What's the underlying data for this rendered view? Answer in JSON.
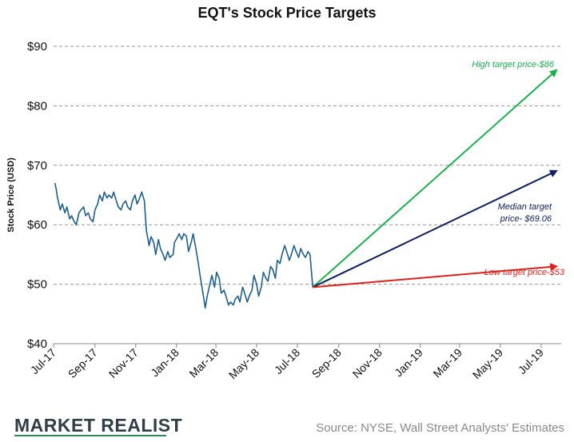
{
  "chart_data": {
    "type": "line",
    "title": "EQT's Stock Price Targets",
    "ylabel": "Stock Price (USD)",
    "xlabel": "",
    "ylim": [
      40,
      90
    ],
    "y_ticks": [
      40,
      50,
      60,
      70,
      80,
      90
    ],
    "y_tick_labels": [
      "$40",
      "$50",
      "$60",
      "$70",
      "$80",
      "$90"
    ],
    "x_range": [
      "2017-07-01",
      "2019-07-31"
    ],
    "x_ticks": [
      "2017-07-01",
      "2017-09-01",
      "2017-11-01",
      "2018-01-01",
      "2018-03-01",
      "2018-05-01",
      "2018-07-01",
      "2018-09-01",
      "2018-11-01",
      "2019-01-01",
      "2019-03-01",
      "2019-05-01",
      "2019-07-01"
    ],
    "x_tick_labels": [
      "Jul-17",
      "Sep-17",
      "Nov-17",
      "Jan-18",
      "Mar-18",
      "May-18",
      "Jul-18",
      "Sep-18",
      "Nov-18",
      "Jan-19",
      "Mar-19",
      "May-19",
      "Jul-19"
    ],
    "grid": "horizontal dashed",
    "series": [
      {
        "color": "#1f5f8b",
        "x": [
          "2017-07-03",
          "2017-07-05",
          "2017-07-07",
          "2017-07-11",
          "2017-07-14",
          "2017-07-18",
          "2017-07-21",
          "2017-07-25",
          "2017-07-28",
          "2017-08-01",
          "2017-08-04",
          "2017-08-08",
          "2017-08-11",
          "2017-08-15",
          "2017-08-18",
          "2017-08-22",
          "2017-08-25",
          "2017-08-29",
          "2017-09-01",
          "2017-09-05",
          "2017-09-08",
          "2017-09-12",
          "2017-09-15",
          "2017-09-19",
          "2017-09-22",
          "2017-09-26",
          "2017-09-29",
          "2017-10-03",
          "2017-10-06",
          "2017-10-10",
          "2017-10-13",
          "2017-10-17",
          "2017-10-20",
          "2017-10-24",
          "2017-10-27",
          "2017-10-31",
          "2017-11-03",
          "2017-11-07",
          "2017-11-10",
          "2017-11-14",
          "2017-11-17",
          "2017-11-21",
          "2017-11-24",
          "2017-11-28",
          "2017-12-01",
          "2017-12-05",
          "2017-12-08",
          "2017-12-12",
          "2017-12-15",
          "2017-12-19",
          "2017-12-22",
          "2017-12-27",
          "2017-12-29",
          "2018-01-03",
          "2018-01-05",
          "2018-01-09",
          "2018-01-12",
          "2018-01-16",
          "2018-01-19",
          "2018-01-23",
          "2018-01-26",
          "2018-01-30",
          "2018-02-02",
          "2018-02-06",
          "2018-02-09",
          "2018-02-13",
          "2018-02-16",
          "2018-02-20",
          "2018-02-23",
          "2018-02-27",
          "2018-03-02",
          "2018-03-06",
          "2018-03-09",
          "2018-03-13",
          "2018-03-16",
          "2018-03-20",
          "2018-03-23",
          "2018-03-27",
          "2018-03-30",
          "2018-04-03",
          "2018-04-06",
          "2018-04-10",
          "2018-04-13",
          "2018-04-17",
          "2018-04-20",
          "2018-04-24",
          "2018-04-27",
          "2018-05-01",
          "2018-05-04",
          "2018-05-08",
          "2018-05-11",
          "2018-05-15",
          "2018-05-18",
          "2018-05-22",
          "2018-05-25",
          "2018-05-29",
          "2018-06-01",
          "2018-06-05",
          "2018-06-08",
          "2018-06-12",
          "2018-06-15",
          "2018-06-19",
          "2018-06-22",
          "2018-06-26",
          "2018-06-29",
          "2018-07-03",
          "2018-07-06",
          "2018-07-10",
          "2018-07-13",
          "2018-07-17",
          "2018-07-20",
          "2018-07-24"
        ],
        "values": [
          67.0,
          66.0,
          64.5,
          62.5,
          63.5,
          62.0,
          63.0,
          61.0,
          61.5,
          60.5,
          60.0,
          62.0,
          62.5,
          63.0,
          61.5,
          62.0,
          61.0,
          60.5,
          62.5,
          63.5,
          65.0,
          64.0,
          65.5,
          64.5,
          65.0,
          64.5,
          65.5,
          64.0,
          63.0,
          62.5,
          63.5,
          64.0,
          63.0,
          62.5,
          64.0,
          65.0,
          63.5,
          64.5,
          65.5,
          64.0,
          59.0,
          56.5,
          58.0,
          57.0,
          55.0,
          57.5,
          56.0,
          55.0,
          54.0,
          55.5,
          54.5,
          55.0,
          57.0,
          58.0,
          58.5,
          57.5,
          58.5,
          58.0,
          55.5,
          57.0,
          58.5,
          56.0,
          54.0,
          51.0,
          49.0,
          46.0,
          48.0,
          50.0,
          51.5,
          49.5,
          52.0,
          51.0,
          48.5,
          49.0,
          48.0,
          46.5,
          47.0,
          46.5,
          47.5,
          48.0,
          47.0,
          49.5,
          48.5,
          47.0,
          48.0,
          49.0,
          51.5,
          50.0,
          48.0,
          49.5,
          52.0,
          51.0,
          50.5,
          53.0,
          52.5,
          51.0,
          54.0,
          53.5,
          55.0,
          56.5,
          55.5,
          54.0,
          55.0,
          56.5,
          55.5,
          54.5,
          56.0,
          55.0,
          54.5,
          55.5,
          55.0,
          49.5
        ]
      }
    ],
    "targets": [
      {
        "label": "High target price-$86",
        "color": "#18b24b",
        "from": {
          "x": "2018-07-24",
          "y": 49.5
        },
        "to": {
          "x": "2019-07-24",
          "y": 86
        }
      },
      {
        "label": "Median target price- $69.06",
        "label_lines": [
          "Median target",
          "price- $69.06"
        ],
        "color": "#0f2060",
        "from": {
          "x": "2018-07-24",
          "y": 49.5
        },
        "to": {
          "x": "2019-07-24",
          "y": 69.06
        }
      },
      {
        "label": "Low target price-$53",
        "color": "#e0201b",
        "from": {
          "x": "2018-07-24",
          "y": 49.5
        },
        "to": {
          "x": "2019-07-24",
          "y": 53
        }
      }
    ]
  },
  "footer": {
    "logo": "MARKET REALIST",
    "source": "Source: NYSE, Wall Street Analysts' Estimates"
  },
  "colors": {
    "grid": "#999999",
    "axis": "#888888",
    "price_line": "#1f5f8b",
    "logo_text": "#2f3e48",
    "logo_accent": "#2e8b57",
    "source_text": "#8a8a8a"
  }
}
